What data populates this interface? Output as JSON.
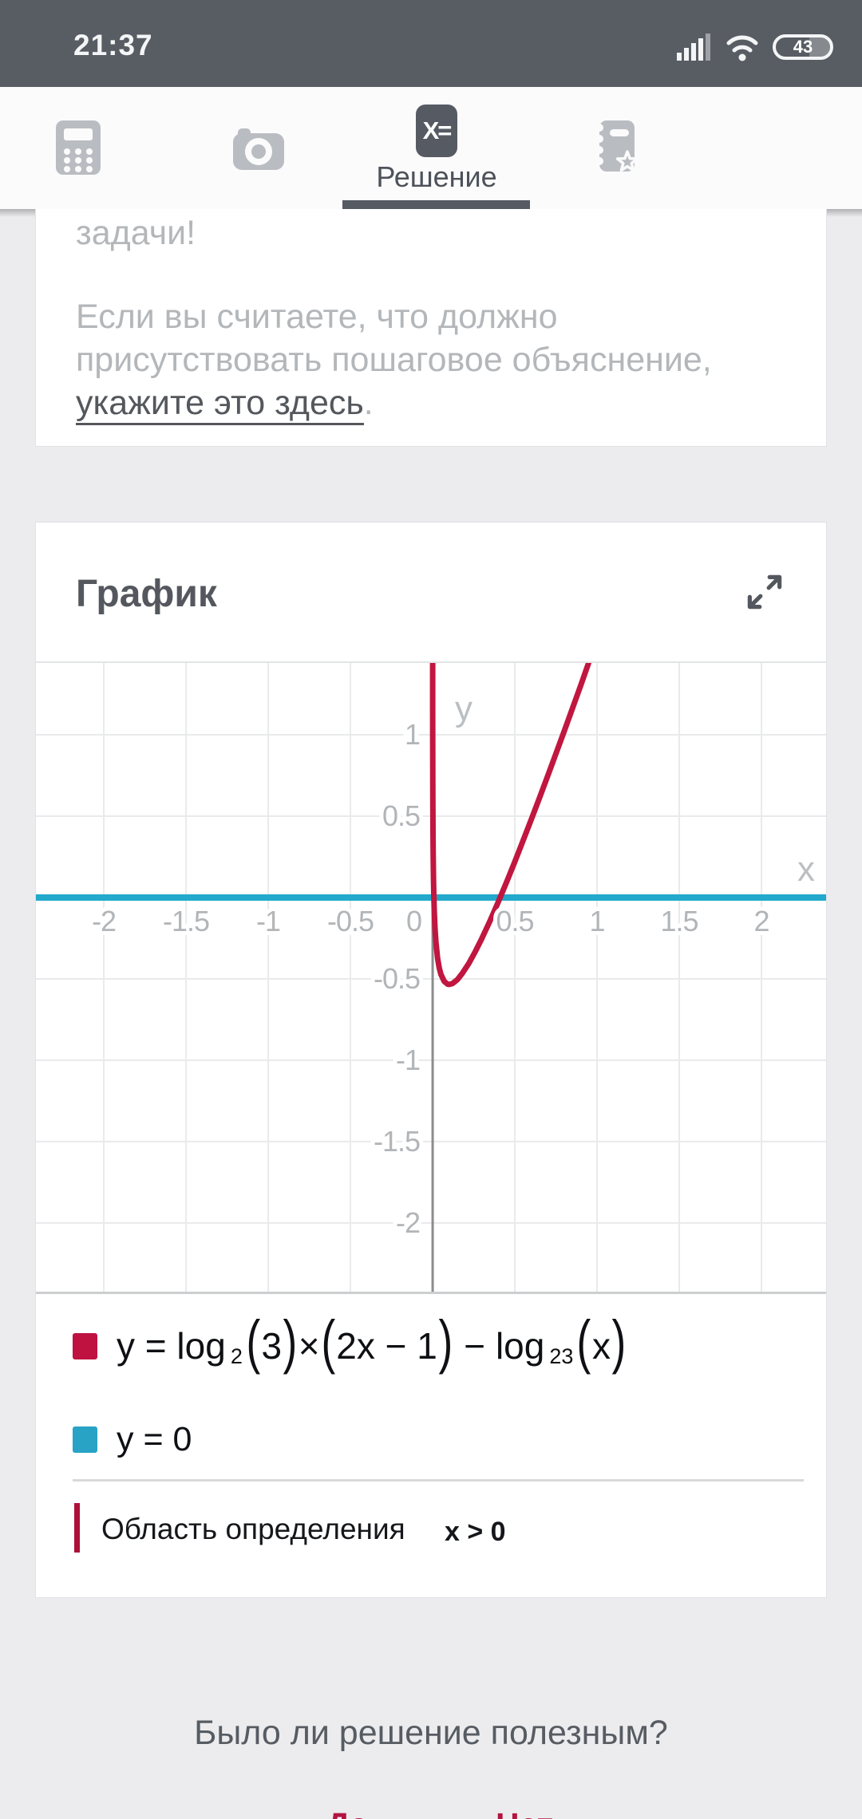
{
  "colors": {
    "accent_red": "#bf1240",
    "accent_blue": "#28a3c6",
    "status_bar_bg": "#585d64",
    "active_tab": "#565b63",
    "muted_text": "#b4b7ba"
  },
  "status_bar": {
    "time": "21:37",
    "battery_level": "43",
    "icons": [
      "signal-icon",
      "wifi-icon",
      "battery-icon"
    ]
  },
  "tab_bar": {
    "tabs": [
      {
        "name": "calculator",
        "icon": "calculator-icon",
        "active": false
      },
      {
        "name": "camera",
        "icon": "camera-icon",
        "active": false
      },
      {
        "name": "solution",
        "icon": "x-equals-icon",
        "label": "Решение",
        "active": true,
        "icon_text": "X="
      },
      {
        "name": "notebook",
        "icon": "notebook-star-icon",
        "active": false
      }
    ]
  },
  "note_card": {
    "tail_line": "задачи!",
    "body_line1": "Если вы считаете, что должно",
    "body_line2": "присутствовать пошаговое объяснение,",
    "link_text": "укажите это здесь",
    "after_link": "."
  },
  "graph_card": {
    "title": "График",
    "expand_icon": "expand-icon",
    "legend": [
      {
        "color": "#bf1240",
        "formula_segments": [
          {
            "t": "y = log"
          },
          {
            "s": "2"
          },
          {
            "p": "("
          },
          {
            "t": "3"
          },
          {
            "p": ")"
          },
          {
            "t": "×"
          },
          {
            "p": "("
          },
          {
            "t": "2x − 1"
          },
          {
            "p": ")"
          },
          {
            "t": " − log"
          },
          {
            "s": "23"
          },
          {
            "p": "("
          },
          {
            "t": "x"
          },
          {
            "p": ")"
          }
        ]
      },
      {
        "color": "#28a3c6",
        "label": "y = 0"
      }
    ],
    "domain": {
      "label": "Область определения",
      "value": "x > 0"
    }
  },
  "chart_data": {
    "type": "line",
    "title": "График",
    "xlabel": "x",
    "ylabel": "y",
    "xlim": [
      -2.413,
      2.393
    ],
    "ylim": [
      -2.422,
      1.441
    ],
    "x_ticks": [
      -2,
      -1.5,
      -1,
      -0.5,
      0,
      0.5,
      1,
      1.5,
      2
    ],
    "y_ticks": [
      1,
      0.5,
      -0.5,
      -1,
      -1.5,
      -2
    ],
    "grid_x": [
      -2,
      -1.5,
      -1,
      -0.5,
      0,
      0.5,
      1,
      1.5,
      2
    ],
    "grid_y": [
      1,
      0.5,
      0,
      -0.5,
      -1,
      -1.5,
      -2
    ],
    "grid_on": true,
    "grid_color": "#e9eaeb",
    "axis_color": "#8b8c8e",
    "tick_color": "#b2b5b8",
    "axis_letter_color": "#bcbfc2",
    "legend_position": "below",
    "series": [
      {
        "name": "y = log2(3)×(2x − 1) − log23(x)",
        "color": "#c0163f",
        "width": 7,
        "points": [
          [
            8e-05,
            1.466
          ],
          [
            0.0002,
            1.131
          ],
          [
            0.0005,
            0.841
          ],
          [
            0.001,
            0.621
          ],
          [
            0.002,
            0.403
          ],
          [
            0.003,
            0.278
          ],
          [
            0.005,
            0.121
          ],
          [
            0.007,
            0.02
          ],
          [
            0.01,
            -0.085
          ],
          [
            0.015,
            -0.198
          ],
          [
            0.02,
            -0.274
          ],
          [
            0.03,
            -0.372
          ],
          [
            0.04,
            -0.432
          ],
          [
            0.05,
            -0.472
          ],
          [
            0.07,
            -0.515
          ],
          [
            0.09,
            -0.532
          ],
          [
            0.1,
            -0.534
          ],
          [
            0.12,
            -0.529
          ],
          [
            0.15,
            -0.505
          ],
          [
            0.18,
            -0.467
          ],
          [
            0.22,
            -0.405
          ],
          [
            0.26,
            -0.331
          ],
          [
            0.3,
            -0.25
          ],
          [
            0.35,
            -0.141
          ],
          [
            0.4,
            -0.025
          ],
          [
            0.45,
            0.096
          ],
          [
            0.5,
            0.221
          ],
          [
            0.55,
            0.35
          ],
          [
            0.6,
            0.48
          ],
          [
            0.65,
            0.613
          ],
          [
            0.7,
            0.748
          ],
          [
            0.75,
            0.885
          ],
          [
            0.8,
            1.022
          ],
          [
            0.85,
            1.162
          ],
          [
            0.9,
            1.302
          ],
          [
            0.96,
            1.474
          ]
        ]
      },
      {
        "name": "y = 0",
        "color": "#22a9cb",
        "width": 8,
        "y_const": 0
      }
    ]
  },
  "footer": {
    "question": "Было ли решение полезным?",
    "yes_label": "Да",
    "no_label": "Нет"
  }
}
